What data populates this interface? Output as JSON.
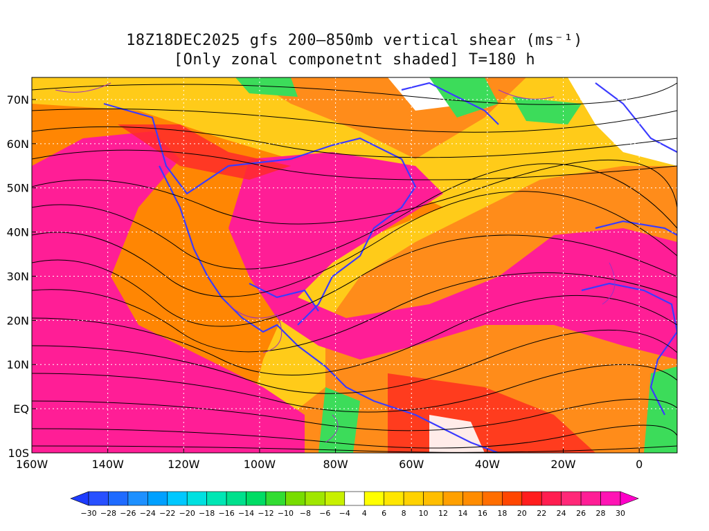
{
  "title": {
    "line1": "18Z18DEC2025 gfs 200–850mb vertical shear (ms⁻¹)",
    "line2": "[Only zonal componetnt shaded] T=180 h"
  },
  "map": {
    "lat_labels": [
      "70N",
      "60N",
      "50N",
      "40N",
      "30N",
      "20N",
      "10N",
      "EQ",
      "10S"
    ],
    "lon_labels": [
      "160W",
      "140W",
      "120W",
      "100W",
      "80W",
      "60W",
      "40W",
      "20W",
      "0"
    ],
    "lat_range": [
      -10,
      75
    ],
    "lon_range": [
      -160,
      10
    ],
    "grid_dotted": true,
    "colors": {
      "coastline": "#3b3bff",
      "streamline": "#000000",
      "contour": "#9b30c0"
    }
  },
  "colorbar": {
    "labels": [
      "-30",
      "-28",
      "-26",
      "-24",
      "-22",
      "-20",
      "-18",
      "-16",
      "-14",
      "-12",
      "-10",
      "-8",
      "-6",
      "-4",
      "4",
      "6",
      "8",
      "10",
      "12",
      "14",
      "16",
      "18",
      "20",
      "22",
      "24",
      "26",
      "28",
      "30"
    ],
    "colors": [
      "#1e3cff",
      "#2850ff",
      "#1f6bff",
      "#1e90ff",
      "#00a0ff",
      "#00c8ff",
      "#00e0e0",
      "#00e6b4",
      "#00e08c",
      "#00dc64",
      "#32dc32",
      "#78dc00",
      "#a0e600",
      "#c8f000",
      "#ffffff",
      "#ffff00",
      "#ffe600",
      "#ffd200",
      "#ffbe00",
      "#ffa000",
      "#ff8c00",
      "#ff6e00",
      "#ff4600",
      "#ff1e1e",
      "#ff1e50",
      "#ff2878",
      "#ff1e96",
      "#ff14b4",
      "#ff00c8"
    ]
  }
}
